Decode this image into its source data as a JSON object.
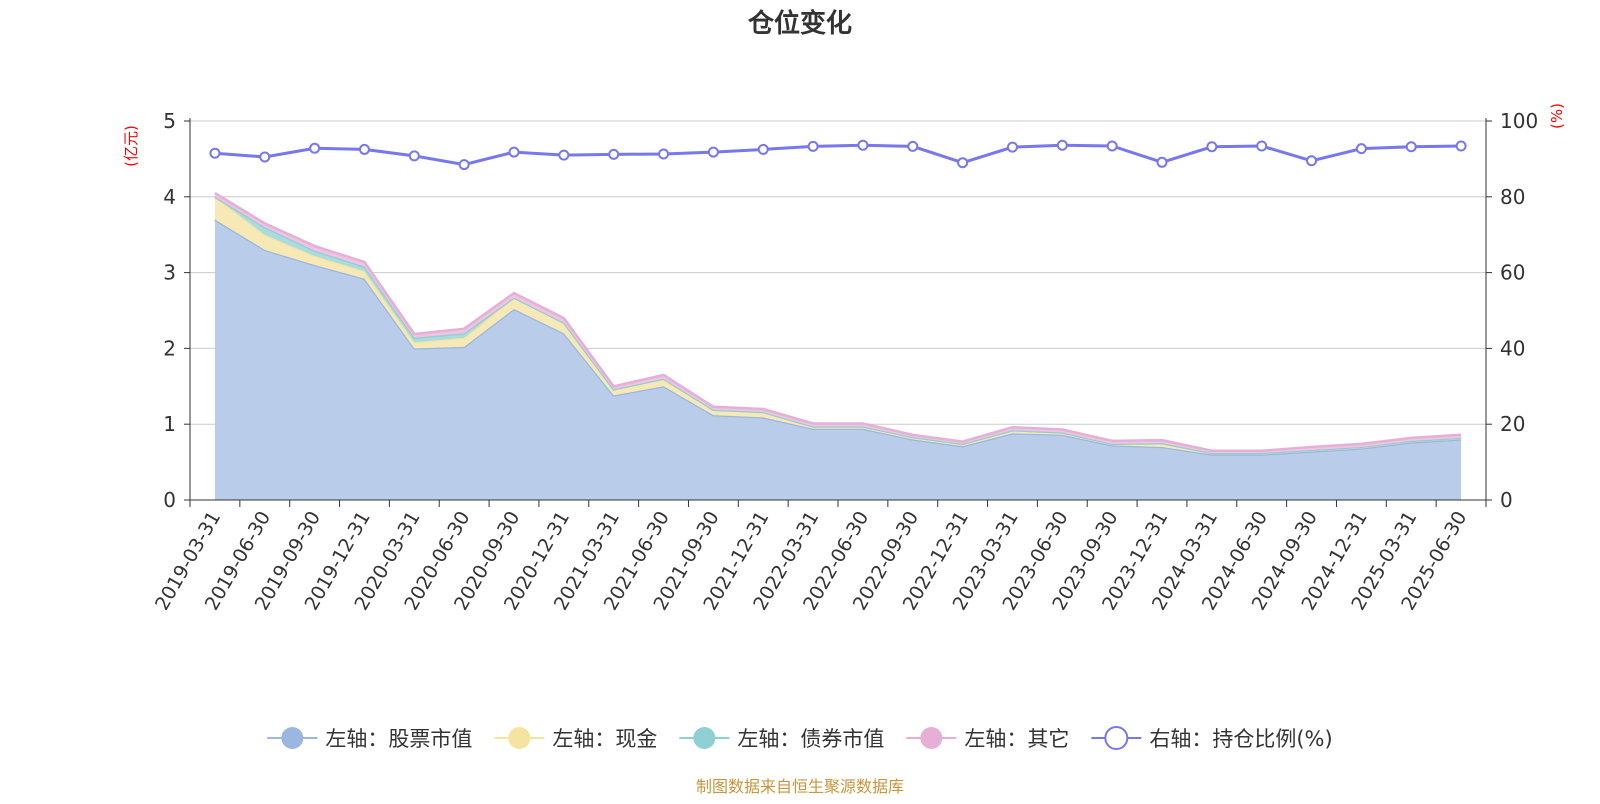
{
  "chart_data": {
    "type": "area",
    "title": "仓位变化",
    "left_axis_unit": "(亿元)",
    "right_axis_unit": "(%)",
    "y_left_lim": [
      0,
      5
    ],
    "y_left_ticks": [
      "0",
      "1",
      "2",
      "3",
      "4",
      "5"
    ],
    "y_right_lim": [
      0,
      100
    ],
    "y_right_ticks": [
      "0",
      "20",
      "40",
      "60",
      "80",
      "100"
    ],
    "grid": true,
    "legend_position": "bottom",
    "x": [
      "2019-03-31",
      "2019-06-30",
      "2019-09-30",
      "2019-12-31",
      "2020-03-31",
      "2020-06-30",
      "2020-09-30",
      "2020-12-31",
      "2021-03-31",
      "2021-06-30",
      "2021-09-30",
      "2021-12-31",
      "2022-03-31",
      "2022-06-30",
      "2022-09-30",
      "2022-12-31",
      "2023-03-31",
      "2023-06-30",
      "2023-09-30",
      "2023-12-31",
      "2024-03-31",
      "2024-06-30",
      "2024-09-30",
      "2024-12-31",
      "2025-03-31",
      "2025-06-30"
    ],
    "stacked_series": [
      {
        "name": "左轴：股票市值",
        "color": "#9bb6e0",
        "fill": "#b9cdeb",
        "values": [
          3.7,
          3.3,
          3.1,
          2.92,
          2.0,
          2.02,
          2.52,
          2.2,
          1.38,
          1.5,
          1.12,
          1.09,
          0.94,
          0.94,
          0.8,
          0.71,
          0.88,
          0.86,
          0.72,
          0.7,
          0.6,
          0.6,
          0.64,
          0.68,
          0.76,
          0.8
        ]
      },
      {
        "name": "左轴：现金",
        "color": "#f5e3a0",
        "fill": "#f7e9b5",
        "values": [
          0.3,
          0.2,
          0.12,
          0.1,
          0.08,
          0.12,
          0.15,
          0.14,
          0.08,
          0.1,
          0.07,
          0.07,
          0.03,
          0.03,
          0.03,
          0.03,
          0.04,
          0.03,
          0.02,
          0.05,
          0.02,
          0.02,
          0.02,
          0.02,
          0.02,
          0.02
        ]
      },
      {
        "name": "左轴：债券市值",
        "color": "#8fd0d2",
        "fill": "#a9dcde",
        "values": [
          0.0,
          0.1,
          0.07,
          0.06,
          0.06,
          0.06,
          0.0,
          0.0,
          0.0,
          0.0,
          0.0,
          0.0,
          0.0,
          0.0,
          0.0,
          0.0,
          0.0,
          0.0,
          0.0,
          0.0,
          0.0,
          0.0,
          0.0,
          0.0,
          0.0,
          0.0
        ]
      },
      {
        "name": "左轴：其它",
        "color": "#e6afd6",
        "fill": "#efc4e2",
        "values": [
          0.05,
          0.05,
          0.06,
          0.06,
          0.05,
          0.06,
          0.06,
          0.06,
          0.04,
          0.05,
          0.04,
          0.04,
          0.04,
          0.04,
          0.03,
          0.03,
          0.04,
          0.04,
          0.04,
          0.04,
          0.03,
          0.03,
          0.04,
          0.04,
          0.04,
          0.04
        ]
      }
    ],
    "line_series": {
      "name": "右轴：持仓比例(%)",
      "color": "#7777ee",
      "axis": "right",
      "values": [
        91.5,
        90.5,
        92.8,
        92.5,
        90.8,
        88.5,
        91.8,
        91.0,
        91.2,
        91.3,
        91.8,
        92.5,
        93.3,
        93.6,
        93.3,
        89.0,
        93.1,
        93.6,
        93.4,
        89.1,
        93.2,
        93.4,
        89.5,
        92.7,
        93.2,
        93.4
      ]
    }
  },
  "legend": [
    {
      "label": "左轴：股票市值",
      "color": "#9bb6e0",
      "marker": "filled"
    },
    {
      "label": "左轴：现金",
      "color": "#f5e3a0",
      "marker": "filled"
    },
    {
      "label": "左轴：债券市值",
      "color": "#8fd0d2",
      "marker": "filled"
    },
    {
      "label": "左轴：其它",
      "color": "#e6afd6",
      "marker": "filled"
    },
    {
      "label": "右轴：持仓比例(%)",
      "color": "#7777ee",
      "marker": "hollow"
    }
  ],
  "footer": "制图数据来自恒生聚源数据库"
}
